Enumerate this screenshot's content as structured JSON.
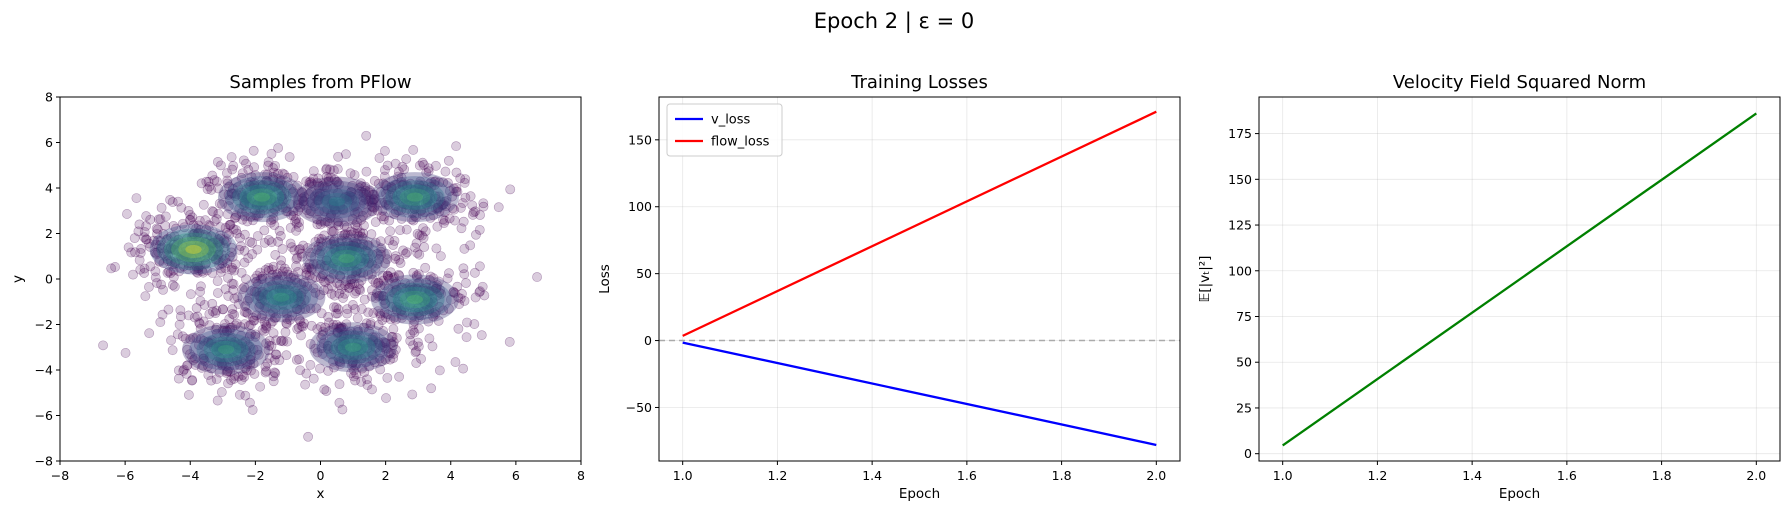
{
  "figure": {
    "suptitle": "Epoch 2 | ε = 0"
  },
  "chart_data": [
    {
      "type": "scatter",
      "title": "Samples from PFlow",
      "xlabel": "x",
      "ylabel": "y",
      "xlim": [
        -8,
        8
      ],
      "ylim": [
        -8,
        8
      ],
      "xticks": [
        -8,
        -6,
        -4,
        -2,
        0,
        2,
        4,
        6,
        8
      ],
      "yticks": [
        -8,
        -6,
        -4,
        -2,
        0,
        2,
        4,
        6,
        8
      ],
      "grid": false,
      "point_color": "#440154",
      "point_alpha": 0.2,
      "density_colormap": "viridis",
      "density_modes": [
        {
          "x": -3.9,
          "y": 1.3,
          "level": 1.0
        },
        {
          "x": -1.8,
          "y": 3.6,
          "level": 0.72
        },
        {
          "x": -2.9,
          "y": -3.1,
          "level": 0.62
        },
        {
          "x": -1.2,
          "y": -0.8,
          "level": 0.6
        },
        {
          "x": 0.8,
          "y": 0.9,
          "level": 0.68
        },
        {
          "x": 1.0,
          "y": -3.0,
          "level": 0.62
        },
        {
          "x": 2.9,
          "y": 3.6,
          "level": 0.7
        },
        {
          "x": 2.9,
          "y": -0.9,
          "level": 0.72
        },
        {
          "x": 0.5,
          "y": 3.4,
          "level": 0.45
        }
      ]
    },
    {
      "type": "line",
      "title": "Training Losses",
      "xlabel": "Epoch",
      "ylabel": "Loss",
      "xlim": [
        0.95,
        2.05
      ],
      "ylim": [
        -90,
        182
      ],
      "xticks": [
        1.0,
        1.2,
        1.4,
        1.6,
        1.8,
        2.0
      ],
      "yticks": [
        -50,
        0,
        50,
        100,
        150
      ],
      "grid": true,
      "legend": "top-left",
      "hline": {
        "y": 0,
        "color": "#aaaaaa",
        "style": "dashed"
      },
      "series": [
        {
          "name": "v_loss",
          "color": "#0000ff",
          "x": [
            1.0,
            2.0
          ],
          "y": [
            -1.5,
            -78
          ]
        },
        {
          "name": "flow_loss",
          "color": "#ff0000",
          "x": [
            1.0,
            2.0
          ],
          "y": [
            3.5,
            171
          ]
        }
      ]
    },
    {
      "type": "line",
      "title": "Velocity Field Squared Norm",
      "xlabel": "Epoch",
      "ylabel": "𝔼[|vₜ|²]",
      "xlim": [
        0.95,
        2.05
      ],
      "ylim": [
        -4,
        195
      ],
      "xticks": [
        1.0,
        1.2,
        1.4,
        1.6,
        1.8,
        2.0
      ],
      "yticks": [
        0,
        25,
        50,
        75,
        100,
        125,
        150,
        175
      ],
      "grid": true,
      "series": [
        {
          "color": "#008000",
          "x": [
            1.0,
            2.0
          ],
          "y": [
            4.5,
            186
          ]
        }
      ]
    }
  ]
}
